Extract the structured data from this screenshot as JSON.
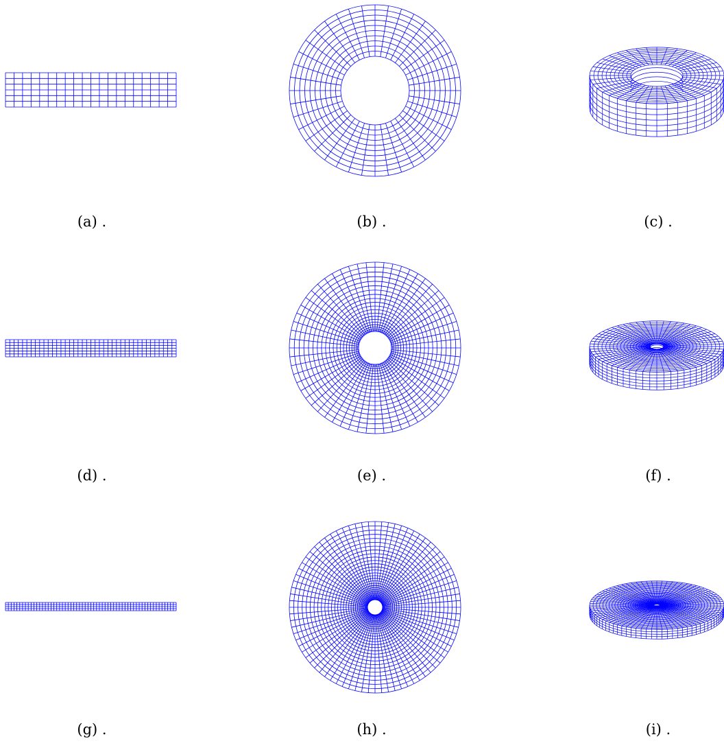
{
  "figure": {
    "mesh_color": "#0000ff",
    "rows": [
      {
        "panels": [
          {
            "label": "(a) .",
            "view": "side-section",
            "radial_divisions": 20,
            "axial_divisions": 6
          },
          {
            "label": "(b) .",
            "view": "top-annulus",
            "radial_divisions": 10,
            "angular_divisions": 40
          },
          {
            "label": "(c) .",
            "view": "isometric-ring",
            "radial_divisions": 10,
            "angular_divisions": 40,
            "axial_divisions": 6
          }
        ]
      },
      {
        "panels": [
          {
            "label": "(d) .",
            "view": "side-section",
            "radial_divisions": 40,
            "axial_divisions": 6
          },
          {
            "label": "(e) .",
            "view": "top-annulus",
            "radial_divisions": 20,
            "angular_divisions": 60
          },
          {
            "label": "(f) .",
            "view": "isometric-ring",
            "radial_divisions": 20,
            "angular_divisions": 60,
            "axial_divisions": 6
          }
        ]
      },
      {
        "panels": [
          {
            "label": "(g) .",
            "view": "side-section",
            "radial_divisions": 60,
            "axial_divisions": 4
          },
          {
            "label": "(h) .",
            "view": "top-annulus",
            "radial_divisions": 30,
            "angular_divisions": 80
          },
          {
            "label": "(i) .",
            "view": "isometric-ring",
            "radial_divisions": 30,
            "angular_divisions": 80,
            "axial_divisions": 4
          }
        ]
      }
    ]
  }
}
